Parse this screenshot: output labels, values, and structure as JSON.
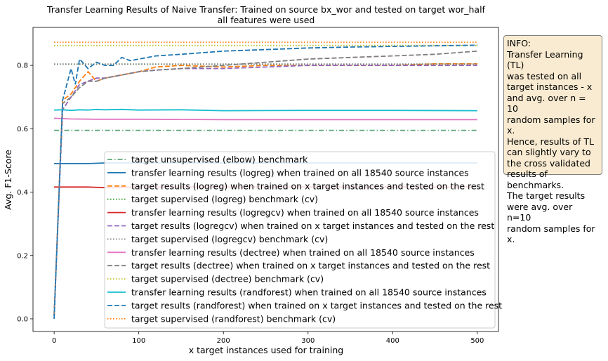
{
  "chart_data": {
    "type": "line",
    "title": "Transfer Learning Results of Naive Transfer: Trained on source bx_wor and tested on target wor_half",
    "subtitle": "all features were used",
    "xlabel": "x target instances used for training",
    "ylabel": "Avg. F1-Score",
    "xlim": [
      -25,
      525
    ],
    "ylim": [
      -0.04,
      0.92
    ],
    "xticks": [
      0,
      100,
      200,
      300,
      400,
      500
    ],
    "yticks": [
      0.0,
      0.2,
      0.4,
      0.6,
      0.8
    ],
    "xtick_labels": [
      "0",
      "100",
      "200",
      "300",
      "400",
      "500"
    ],
    "ytick_labels": [
      "0.0",
      "0.2",
      "0.4",
      "0.6",
      "0.8"
    ],
    "legend_position": "lower-right",
    "series": [
      {
        "name": "target unsupervised (elbow) benchmark",
        "color": "#5fa77a",
        "dash": "dashdot",
        "x": [
          0,
          500
        ],
        "y": [
          0.595,
          0.595
        ]
      },
      {
        "name": "transfer learning results (logreg) when trained on all 18540 source instances",
        "color": "#1f77b4",
        "dash": "solid",
        "x": [
          0,
          40,
          60,
          100,
          200,
          300,
          400,
          500
        ],
        "y": [
          0.49,
          0.49,
          0.492,
          0.492,
          0.492,
          0.492,
          0.492,
          0.492
        ]
      },
      {
        "name": "target results (logreg) when trained on x target instances and tested on the rest",
        "color": "#ff7f0e",
        "dash": "dashed",
        "x": [
          0,
          10,
          20,
          30,
          40,
          50,
          60,
          80,
          100,
          120,
          150,
          200,
          250,
          300,
          350,
          400,
          450,
          500
        ],
        "y": [
          0.01,
          0.69,
          0.71,
          0.75,
          0.78,
          0.75,
          0.76,
          0.77,
          0.78,
          0.795,
          0.8,
          0.795,
          0.8,
          0.8,
          0.8,
          0.8,
          0.805,
          0.805
        ]
      },
      {
        "name": "target supervised (logreg) benchmark (cv)",
        "color": "#2ca02c",
        "dash": "dotted",
        "x": [
          0,
          500
        ],
        "y": [
          0.804,
          0.804
        ]
      },
      {
        "name": "transfer learning results (logregcv) when trained on all 18540 source instances",
        "color": "#d62728",
        "dash": "solid",
        "x": [
          0,
          40,
          60,
          100,
          200,
          300,
          400,
          500
        ],
        "y": [
          0.416,
          0.416,
          0.414,
          0.416,
          0.416,
          0.416,
          0.416,
          0.416
        ]
      },
      {
        "name": "target results (logregcv) when trained on x target instances and tested on the rest",
        "color": "#9467bd",
        "dash": "dashed",
        "x": [
          0,
          10,
          20,
          30,
          40,
          50,
          60,
          80,
          100,
          120,
          150,
          200,
          250,
          300,
          350,
          400,
          450,
          500
        ],
        "y": [
          0.01,
          0.66,
          0.7,
          0.74,
          0.75,
          0.76,
          0.76,
          0.77,
          0.78,
          0.785,
          0.79,
          0.79,
          0.795,
          0.8,
          0.8,
          0.8,
          0.8,
          0.8
        ]
      },
      {
        "name": "target supervised (logregcv) benchmark (cv)",
        "color": "#7f7f7f",
        "dash": "dotted",
        "x": [
          0,
          500
        ],
        "y": [
          0.804,
          0.804
        ]
      },
      {
        "name": "transfer learning results (dectree) when trained on all 18540 source instances",
        "color": "#e377c2",
        "dash": "solid",
        "x": [
          0,
          10,
          20,
          50,
          100,
          200,
          300,
          400,
          500
        ],
        "y": [
          0.633,
          0.632,
          0.631,
          0.63,
          0.63,
          0.629,
          0.629,
          0.629,
          0.629
        ]
      },
      {
        "name": "target results (dectree) when trained on x target instances and tested on the rest",
        "color": "#7f7f7f",
        "dash": "dashed",
        "x": [
          0,
          10,
          20,
          30,
          40,
          50,
          60,
          80,
          100,
          120,
          150,
          200,
          250,
          300,
          350,
          400,
          450,
          500
        ],
        "y": [
          0.01,
          0.68,
          0.7,
          0.73,
          0.75,
          0.75,
          0.76,
          0.77,
          0.78,
          0.785,
          0.79,
          0.8,
          0.81,
          0.82,
          0.825,
          0.83,
          0.835,
          0.845
        ]
      },
      {
        "name": "target supervised (dectree) benchmark (cv)",
        "color": "#bcbd22",
        "dash": "dotted",
        "x": [
          0,
          500
        ],
        "y": [
          0.863,
          0.863
        ]
      },
      {
        "name": "transfer learning results (randforest) when trained on all 18540 source instances",
        "color": "#17becf",
        "dash": "solid",
        "x": [
          0,
          10,
          20,
          30,
          40,
          50,
          60,
          80,
          100,
          150,
          200,
          300,
          400,
          500
        ],
        "y": [
          0.659,
          0.66,
          0.658,
          0.66,
          0.659,
          0.661,
          0.66,
          0.661,
          0.659,
          0.66,
          0.657,
          0.658,
          0.658,
          0.657
        ]
      },
      {
        "name": "target results (randforest) when trained on x target instances and tested on the rest",
        "color": "#1f77b4",
        "dash": "dashed",
        "x": [
          0,
          10,
          20,
          25,
          30,
          40,
          50,
          60,
          70,
          80,
          90,
          100,
          120,
          150,
          200,
          250,
          300,
          350,
          400,
          450,
          500
        ],
        "y": [
          0.0,
          0.69,
          0.79,
          0.74,
          0.82,
          0.79,
          0.81,
          0.8,
          0.8,
          0.825,
          0.815,
          0.82,
          0.83,
          0.835,
          0.845,
          0.85,
          0.855,
          0.858,
          0.86,
          0.862,
          0.864
        ]
      },
      {
        "name": "target supervised (randforest) benchmark (cv)",
        "color": "#ff7f0e",
        "dash": "dotted",
        "x": [
          0,
          500
        ],
        "y": [
          0.873,
          0.873
        ]
      }
    ]
  },
  "info_box": {
    "text": "INFO:\nTransfer Learning (TL)\nwas tested on all\ntarget instances - x\nand avg. over n = 10\nrandom samples for x.\nHence, results of TL\ncan slightly vary to\nthe cross validated\nresults of benchmarks.\nThe target results\nwere avg. over n=10\nrandom samples for x."
  }
}
